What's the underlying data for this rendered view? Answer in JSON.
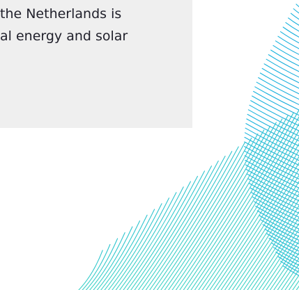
{
  "content_card": {
    "lines": [
      "the Netherlands is",
      "al energy and solar"
    ]
  },
  "graphic": {
    "icon": "wave-line-pattern",
    "colors": {
      "teal_light": "#3fd3c6",
      "cyan": "#19b4de",
      "blue": "#1e9fd8",
      "card_bg": "#efefef",
      "text": "#1f1f2a"
    }
  }
}
